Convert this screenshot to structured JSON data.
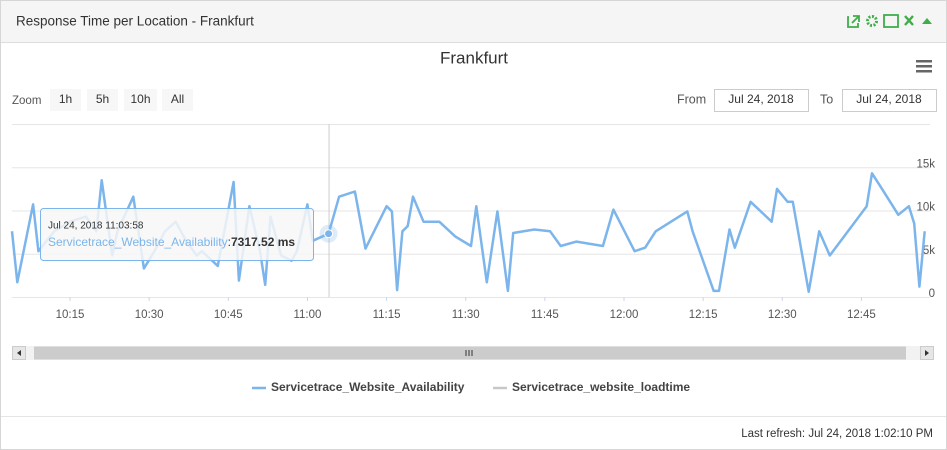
{
  "panel": {
    "title": "Response Time per Location - Frankfurt"
  },
  "zoom": {
    "label": "Zoom",
    "buttons": [
      "1h",
      "5h",
      "10h",
      "All"
    ]
  },
  "range": {
    "from_label": "From",
    "from": "Jul 24, 2018",
    "to_label": "To",
    "to": "Jul 24, 2018"
  },
  "chart_data": {
    "type": "line",
    "title": "Frankfurt",
    "x": [
      "10:04",
      "10:05",
      "10:08",
      "10:09",
      "10:12",
      "10:15",
      "10:18",
      "10:20",
      "10:21",
      "10:23",
      "10:24",
      "10:27",
      "10:29",
      "10:31",
      "10:33",
      "10:35",
      "10:37",
      "10:39",
      "10:40",
      "10:43",
      "10:46",
      "10:47",
      "10:49",
      "10:51",
      "10:52",
      "10:53",
      "10:55",
      "10:57",
      "10:58",
      "11:00",
      "11:01",
      "11:04",
      "11:06",
      "11:09",
      "11:11",
      "11:15",
      "11:16",
      "11:17",
      "11:18",
      "11:19",
      "11:20",
      "11:22",
      "11:25",
      "11:28",
      "11:31",
      "11:32",
      "11:34",
      "11:36",
      "11:38",
      "11:39",
      "11:43",
      "11:46",
      "11:48",
      "11:51",
      "11:56",
      "11:58",
      "12:02",
      "12:04",
      "12:06",
      "12:12",
      "12:13",
      "12:17",
      "12:18",
      "12:20",
      "12:21",
      "12:24",
      "12:28",
      "12:29",
      "12:31",
      "12:32",
      "12:35",
      "12:37",
      "12:39",
      "12:46",
      "12:47",
      "12:49",
      "12:52",
      "12:54",
      "12:55",
      "12:56",
      "12:57"
    ],
    "series": [
      {
        "name": "Servicetrace_Website_Availability",
        "color": "#7cb5ec",
        "values": [
          7600,
          1700,
          10700,
          5300,
          7600,
          8700,
          9300,
          7600,
          13500,
          4800,
          7600,
          11600,
          3300,
          5300,
          7600,
          8700,
          6500,
          4800,
          5300,
          3600,
          13300,
          1900,
          10500,
          5300,
          1400,
          9300,
          4800,
          4200,
          5300,
          10700,
          6500,
          7317.52,
          11600,
          12200,
          5600,
          10500,
          9900,
          800,
          7600,
          8200,
          11600,
          8700,
          8700,
          7000,
          5900,
          10500,
          1700,
          9900,
          700,
          7400,
          7800,
          7600,
          5900,
          6400,
          5900,
          10100,
          5300,
          5700,
          7600,
          9900,
          7600,
          700,
          700,
          7800,
          5700,
          11000,
          8700,
          12500,
          11000,
          11000,
          600,
          7600,
          4800,
          10500,
          14300,
          12400,
          9500,
          10500,
          8500,
          1200,
          7600
        ]
      },
      {
        "name": "Servicetrace_website_loadtime",
        "color": "#c8c8c8"
      }
    ],
    "xlim": [
      "10:04",
      "12:58"
    ],
    "xticks": [
      "10:15",
      "10:30",
      "10:45",
      "11:00",
      "11:15",
      "11:30",
      "11:45",
      "12:00",
      "12:15",
      "12:30",
      "12:45"
    ],
    "ylim": [
      0,
      20000
    ],
    "yticks": [
      {
        "value": 0,
        "label": "0"
      },
      {
        "value": 5000,
        "label": "5k"
      },
      {
        "value": 10000,
        "label": "10k"
      },
      {
        "value": 15000,
        "label": "15k"
      }
    ],
    "grid": true,
    "tooltip": {
      "time": "Jul 24, 2018 11:03:58",
      "series": "Servicetrace_Website_Availability",
      "separator": ":",
      "value": 7317.52,
      "value_label": "7317.52 ms"
    }
  },
  "footer": {
    "last_refresh": "Last refresh: Jul 24, 2018 1:02:10 PM"
  }
}
